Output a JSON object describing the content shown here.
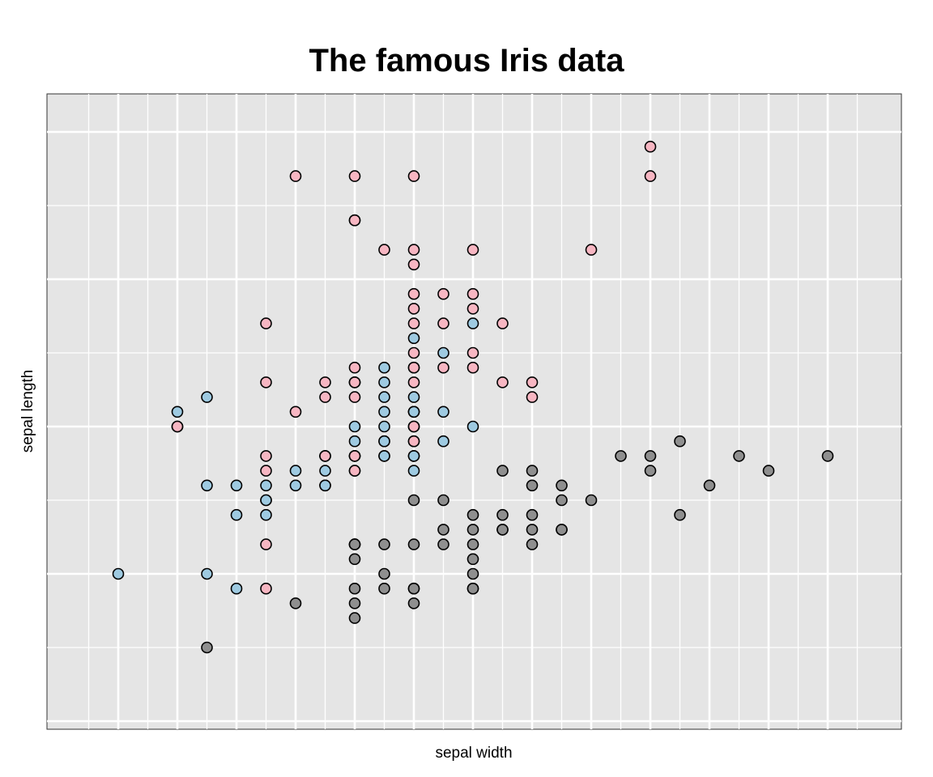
{
  "chart_data": {
    "type": "scatter",
    "title": "The famous Iris data",
    "xlabel": "sepal width",
    "ylabel": "sepal length",
    "x_ticks_labeled": false,
    "y_ticks_labeled": false,
    "grid": true,
    "background": "#e5e5e5",
    "xlim": [
      1.9,
      4.5
    ],
    "ylim": [
      4.2,
      8.0
    ],
    "series": [
      {
        "color": "#8f8f8f",
        "points": [
          [
            2.3,
            4.5
          ],
          [
            2.6,
            4.8
          ],
          [
            2.8,
            4.8
          ],
          [
            2.8,
            4.7
          ],
          [
            3.0,
            4.8
          ],
          [
            2.8,
            4.9
          ],
          [
            2.9,
            4.9
          ],
          [
            3.0,
            4.9
          ],
          [
            3.2,
            4.9
          ],
          [
            3.0,
            4.9
          ],
          [
            2.9,
            5.0
          ],
          [
            3.2,
            5.1
          ],
          [
            2.8,
            5.2
          ],
          [
            2.8,
            5.1
          ],
          [
            2.9,
            5.2
          ],
          [
            2.8,
            5.2
          ],
          [
            2.8,
            5.2
          ],
          [
            3.0,
            5.2
          ],
          [
            3.1,
            5.2
          ],
          [
            3.2,
            5.2
          ],
          [
            3.4,
            5.2
          ],
          [
            3.1,
            5.3
          ],
          [
            3.2,
            5.3
          ],
          [
            3.3,
            5.3
          ],
          [
            3.4,
            5.3
          ],
          [
            3.5,
            5.3
          ],
          [
            3.5,
            5.3
          ],
          [
            3.2,
            5.4
          ],
          [
            3.3,
            5.4
          ],
          [
            3.4,
            5.4
          ],
          [
            3.3,
            5.3
          ],
          [
            3.5,
            5.5
          ],
          [
            3.9,
            5.4
          ],
          [
            3.0,
            5.5
          ],
          [
            3.4,
            5.6
          ],
          [
            3.6,
            5.5
          ],
          [
            3.5,
            5.6
          ],
          [
            4.0,
            5.6
          ],
          [
            3.3,
            5.7
          ],
          [
            3.7,
            5.8
          ],
          [
            3.1,
            5.5
          ],
          [
            4.2,
            5.7
          ],
          [
            3.4,
            5.7
          ],
          [
            3.8,
            5.7
          ],
          [
            3.8,
            5.8
          ],
          [
            3.9,
            5.9
          ],
          [
            4.1,
            5.8
          ],
          [
            4.4,
            5.8
          ],
          [
            3.2,
            4.9
          ],
          [
            3.2,
            5.0
          ]
        ]
      },
      {
        "color": "#9ecae1",
        "points": [
          [
            2.0,
            5.0
          ],
          [
            2.2,
            6.0
          ],
          [
            2.3,
            6.2
          ],
          [
            2.2,
            6.1
          ],
          [
            2.4,
            5.6
          ],
          [
            2.3,
            5.6
          ],
          [
            2.5,
            5.6
          ],
          [
            2.7,
            5.6
          ],
          [
            2.3,
            5.0
          ],
          [
            2.4,
            4.9
          ],
          [
            2.6,
            5.7
          ],
          [
            2.7,
            5.7
          ],
          [
            2.7,
            5.8
          ],
          [
            2.8,
            5.9
          ],
          [
            2.8,
            5.8
          ],
          [
            2.9,
            5.8
          ],
          [
            2.9,
            5.8
          ],
          [
            3.0,
            5.8
          ],
          [
            3.0,
            5.9
          ],
          [
            2.9,
            5.9
          ],
          [
            2.8,
            5.7
          ],
          [
            3.0,
            5.7
          ],
          [
            2.7,
            5.6
          ],
          [
            2.6,
            5.6
          ],
          [
            2.5,
            5.5
          ],
          [
            2.9,
            6.1
          ],
          [
            2.9,
            6.0
          ],
          [
            3.0,
            6.1
          ],
          [
            3.0,
            6.0
          ],
          [
            3.0,
            6.1
          ],
          [
            3.2,
            6.0
          ],
          [
            3.0,
            6.2
          ],
          [
            3.1,
            5.9
          ],
          [
            3.1,
            6.1
          ],
          [
            2.9,
            6.3
          ],
          [
            2.8,
            6.3
          ],
          [
            3.0,
            6.1
          ],
          [
            2.9,
            6.4
          ],
          [
            3.0,
            6.6
          ],
          [
            3.2,
            6.7
          ],
          [
            3.1,
            6.5
          ],
          [
            2.8,
            5.8
          ],
          [
            2.8,
            6.0
          ],
          [
            3.0,
            5.8
          ],
          [
            2.9,
            5.9
          ],
          [
            2.5,
            5.4
          ],
          [
            2.4,
            5.4
          ],
          [
            2.5,
            5.5
          ],
          [
            2.9,
            6.2
          ],
          [
            3.0,
            6.4
          ]
        ]
      },
      {
        "color": "#f7b6c2",
        "points": [
          [
            2.2,
            6.0
          ],
          [
            2.2,
            6.0
          ],
          [
            2.5,
            4.9
          ],
          [
            2.5,
            5.2
          ],
          [
            2.5,
            5.8
          ],
          [
            2.5,
            5.7
          ],
          [
            2.5,
            6.3
          ],
          [
            2.5,
            6.7
          ],
          [
            2.6,
            6.1
          ],
          [
            2.7,
            6.2
          ],
          [
            2.7,
            6.3
          ],
          [
            2.7,
            5.8
          ],
          [
            2.7,
            5.8
          ],
          [
            2.8,
            5.7
          ],
          [
            2.8,
            5.8
          ],
          [
            2.8,
            6.2
          ],
          [
            2.8,
            6.3
          ],
          [
            2.8,
            6.3
          ],
          [
            2.8,
            6.4
          ],
          [
            2.8,
            7.4
          ],
          [
            2.6,
            7.7
          ],
          [
            2.8,
            7.7
          ],
          [
            3.0,
            7.7
          ],
          [
            2.8,
            7.4
          ],
          [
            2.9,
            7.2
          ],
          [
            3.0,
            7.2
          ],
          [
            3.0,
            7.1
          ],
          [
            3.0,
            6.9
          ],
          [
            3.0,
            6.8
          ],
          [
            3.0,
            6.7
          ],
          [
            3.0,
            6.5
          ],
          [
            3.0,
            6.4
          ],
          [
            3.0,
            6.3
          ],
          [
            3.0,
            6.0
          ],
          [
            3.0,
            6.0
          ],
          [
            3.0,
            5.9
          ],
          [
            3.1,
            6.7
          ],
          [
            3.1,
            6.9
          ],
          [
            3.1,
            6.4
          ],
          [
            3.2,
            7.2
          ],
          [
            3.2,
            6.9
          ],
          [
            3.2,
            6.8
          ],
          [
            3.2,
            6.4
          ],
          [
            3.2,
            6.5
          ],
          [
            3.3,
            6.7
          ],
          [
            3.3,
            6.3
          ],
          [
            3.4,
            6.3
          ],
          [
            3.4,
            6.2
          ],
          [
            3.6,
            7.2
          ],
          [
            3.8,
            7.7
          ],
          [
            3.8,
            7.9
          ]
        ]
      }
    ]
  }
}
